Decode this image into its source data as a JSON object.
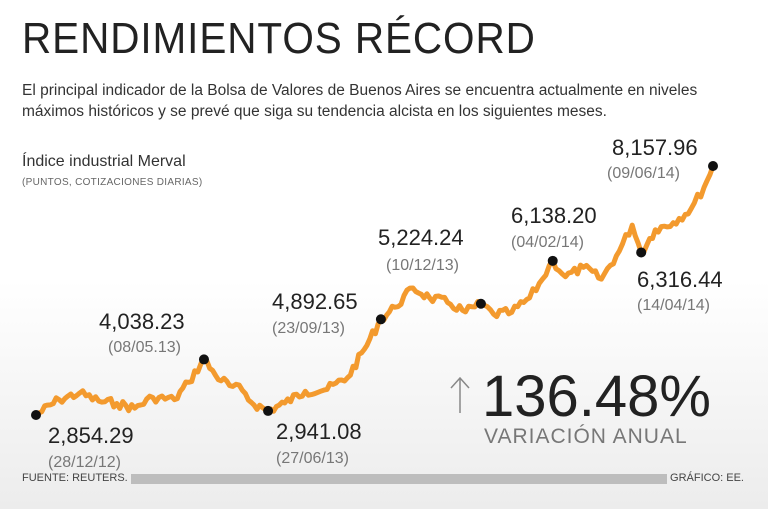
{
  "header": {
    "title": "RENDIMIENTOS RÉCORD",
    "description": "El principal indicador de la Bolsa de Valores de Buenos Aires se encuentra actualmente en niveles máximos históricos y se prevé que siga su tendencia alcista en los siguientes meses."
  },
  "chart_data": {
    "type": "line",
    "title": "Índice industrial Merval",
    "subtitle": "(PUNTOS, COTIZACIONES DIARIAS)",
    "color": "#f39a2e",
    "x_range": [
      "28/12/12",
      "09/06/14"
    ],
    "y_range": [
      2500,
      8500
    ],
    "grid": false,
    "legend": "none",
    "annotations": [
      {
        "value_label": "2,854.29",
        "date_label": "(28/12/12)",
        "date": "2012-12-28",
        "value": 2854.29
      },
      {
        "value_label": "4,038.23",
        "date_label": "(08/05.13)",
        "date": "2013-05-08",
        "value": 4038.23
      },
      {
        "value_label": "2,941.08",
        "date_label": "(27/06/13)",
        "date": "2013-06-27",
        "value": 2941.08
      },
      {
        "value_label": "4,892.65",
        "date_label": "(23/09/13)",
        "date": "2013-09-23",
        "value": 4892.65
      },
      {
        "value_label": "5,224.24",
        "date_label": "(10/12/13)",
        "date": "2013-12-10",
        "value": 5224.24
      },
      {
        "value_label": "6,138.20",
        "date_label": "(04/02/14)",
        "date": "2014-02-04",
        "value": 6138.2
      },
      {
        "value_label": "6,316.44",
        "date_label": "(14/04/14)",
        "date": "2014-04-14",
        "value": 6316.44
      },
      {
        "value_label": "8,157.96",
        "date_label": "(09/06/14)",
        "date": "2014-06-09",
        "value": 8157.96
      }
    ],
    "series": [
      {
        "points": [
          [
            "2012-12-28",
            2854
          ],
          [
            "2013-01-15",
            3180
          ],
          [
            "2013-01-31",
            3320
          ],
          [
            "2013-02-15",
            3150
          ],
          [
            "2013-03-01",
            3100
          ],
          [
            "2013-03-15",
            3000
          ],
          [
            "2013-03-29",
            3230
          ],
          [
            "2013-04-15",
            3180
          ],
          [
            "2013-04-26",
            3550
          ],
          [
            "2013-05-08",
            4038
          ],
          [
            "2013-05-17",
            3700
          ],
          [
            "2013-05-28",
            3480
          ],
          [
            "2013-06-07",
            3380
          ],
          [
            "2013-06-14",
            3120
          ],
          [
            "2013-06-27",
            2941
          ],
          [
            "2013-07-10",
            3110
          ],
          [
            "2013-07-26",
            3360
          ],
          [
            "2013-08-12",
            3400
          ],
          [
            "2013-08-28",
            3650
          ],
          [
            "2013-09-10",
            4250
          ],
          [
            "2013-09-23",
            4893
          ],
          [
            "2013-10-04",
            5150
          ],
          [
            "2013-10-18",
            5560
          ],
          [
            "2013-10-31",
            5350
          ],
          [
            "2013-11-14",
            5250
          ],
          [
            "2013-11-28",
            5050
          ],
          [
            "2013-12-10",
            5224
          ],
          [
            "2013-12-20",
            5000
          ],
          [
            "2014-01-03",
            5040
          ],
          [
            "2014-01-17",
            5350
          ],
          [
            "2014-01-27",
            5750
          ],
          [
            "2014-02-04",
            6138
          ],
          [
            "2014-02-14",
            5800
          ],
          [
            "2014-02-28",
            6000
          ],
          [
            "2014-03-14",
            5750
          ],
          [
            "2014-03-28",
            6350
          ],
          [
            "2014-04-07",
            6900
          ],
          [
            "2014-04-14",
            6316
          ],
          [
            "2014-04-25",
            6800
          ],
          [
            "2014-05-09",
            6950
          ],
          [
            "2014-05-23",
            7250
          ],
          [
            "2014-06-02",
            7700
          ],
          [
            "2014-06-09",
            8158
          ]
        ]
      }
    ]
  },
  "headline_stat": {
    "value": "136.48%",
    "label": "VARIACIÓN ANUAL",
    "arrow_icon": "up-arrow-icon"
  },
  "footer": {
    "source": "FUENTE: REUTERS.",
    "credit": "GRÁFICO: EE."
  }
}
